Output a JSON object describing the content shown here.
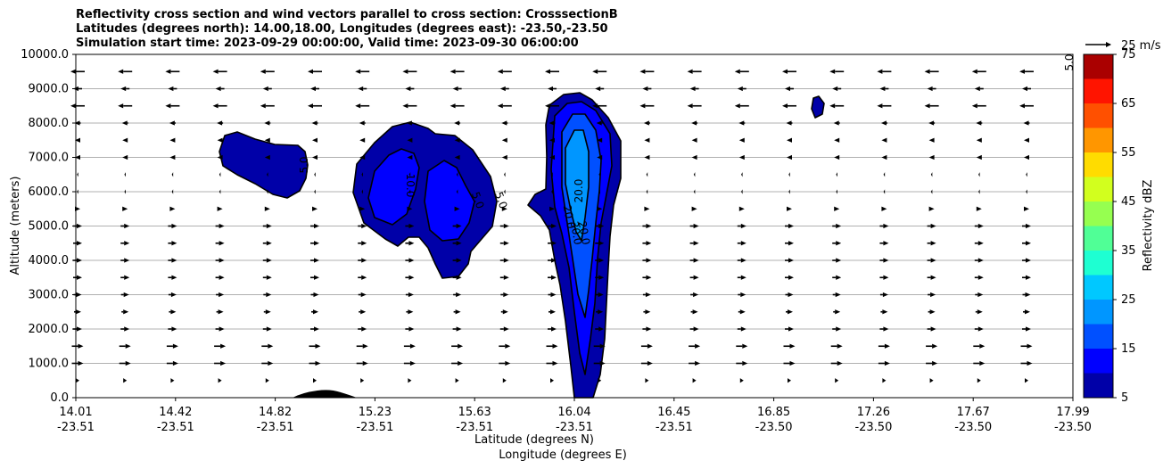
{
  "title_lines": [
    "Reflectivity cross section and wind vectors parallel to cross section: CrosssectionB",
    "Latitudes (degrees north): 14.00,18.00, Longitudes (degrees east): -23.50,-23.50",
    "Simulation start time: 2023-09-29 00:00:00, Valid time: 2023-09-30 06:00:00"
  ],
  "chart_data": {
    "type": "contourf",
    "ylabel": "Altitude (meters)",
    "xlabel_lines": [
      "Latitude (degrees N)",
      "Longitude (degrees E)"
    ],
    "ylim": [
      0,
      10000
    ],
    "y_ticks": [
      "0.0",
      "1000.0",
      "2000.0",
      "3000.0",
      "4000.0",
      "5000.0",
      "6000.0",
      "7000.0",
      "8000.0",
      "9000.0",
      "10000.0"
    ],
    "x_ticks": [
      {
        "lat": "14.01",
        "lon": "-23.51"
      },
      {
        "lat": "14.42",
        "lon": "-23.51"
      },
      {
        "lat": "14.82",
        "lon": "-23.51"
      },
      {
        "lat": "15.23",
        "lon": "-23.51"
      },
      {
        "lat": "15.63",
        "lon": "-23.51"
      },
      {
        "lat": "16.04",
        "lon": "-23.51"
      },
      {
        "lat": "16.45",
        "lon": "-23.51"
      },
      {
        "lat": "16.85",
        "lon": "-23.50"
      },
      {
        "lat": "17.26",
        "lon": "-23.50"
      },
      {
        "lat": "17.67",
        "lon": "-23.50"
      },
      {
        "lat": "17.99",
        "lon": "-23.50"
      }
    ],
    "grid": "horizontal",
    "colorbar": {
      "label": "Reflectivity dBZ",
      "levels": [
        5,
        10,
        15,
        20,
        25,
        30,
        35,
        40,
        45,
        50,
        55,
        60,
        65,
        70,
        75
      ],
      "tick_labels": [
        "5",
        "15",
        "25",
        "35",
        "45",
        "55",
        "65",
        "75"
      ],
      "colors": [
        "#0000a8",
        "#0000ff",
        "#0050ff",
        "#0096ff",
        "#00c8ff",
        "#1effd2",
        "#50ff96",
        "#96ff50",
        "#d2ff1e",
        "#ffdc00",
        "#ff9600",
        "#ff5000",
        "#ff1400",
        "#aa0000"
      ]
    },
    "quiver_key": "25 m/s",
    "contour_labels": [
      "20.0",
      "20.0",
      "30.0",
      "20.0",
      "10.0",
      "5.0",
      "5.0",
      "5.0",
      "5.0"
    ]
  }
}
